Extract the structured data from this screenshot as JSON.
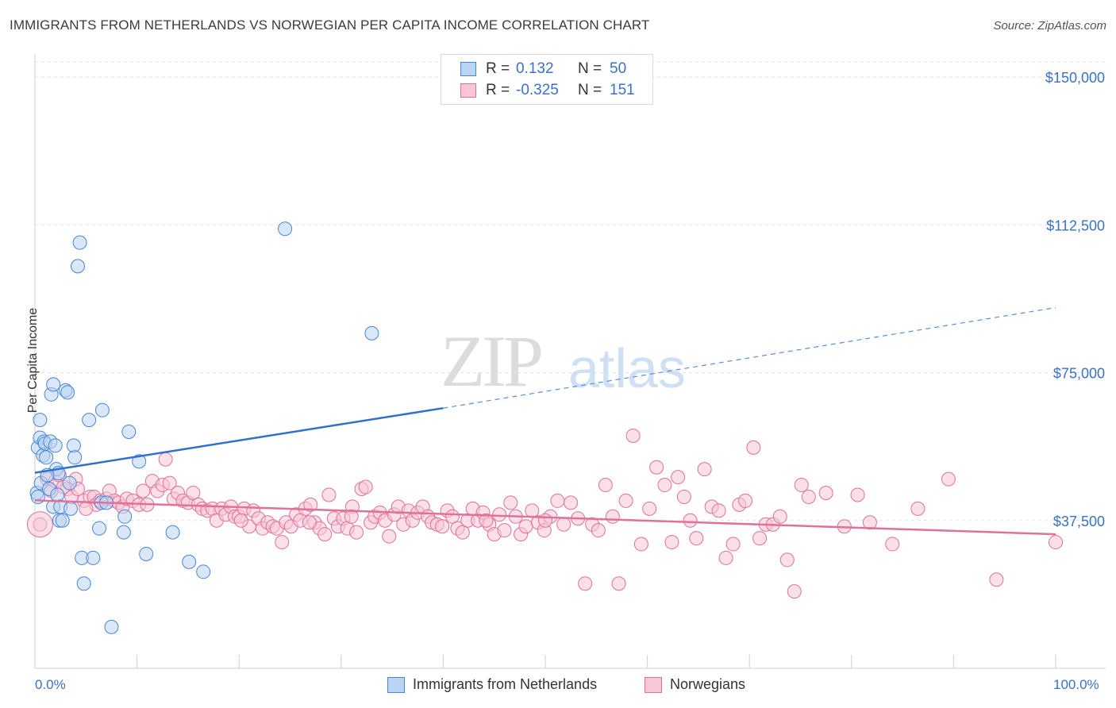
{
  "title": "IMMIGRANTS FROM NETHERLANDS VS NORWEGIAN PER CAPITA INCOME CORRELATION CHART",
  "source": "Source: ZipAtlas.com",
  "watermark": {
    "zip": "ZIP",
    "atlas": "atlas"
  },
  "legend": {
    "r_label": "R =",
    "n_label": "N =",
    "rows": [
      {
        "r": "0.132",
        "n": "50",
        "color": "#4a86d4",
        "fill": "#b9d3f3"
      },
      {
        "r": "-0.325",
        "n": "151",
        "color": "#e0719a",
        "fill": "#f8c6d6"
      }
    ]
  },
  "bottom_legend": [
    {
      "label": "Immigrants from Netherlands"
    },
    {
      "label": "Norwegians"
    }
  ],
  "x_ticks": {
    "left": "0.0%",
    "right": "100.0%"
  },
  "chart_data": {
    "type": "scatter",
    "title": "IMMIGRANTS FROM NETHERLANDS VS NORWEGIAN PER CAPITA INCOME CORRELATION CHART",
    "xlabel": "",
    "ylabel": "Per Capita Income",
    "xlim": [
      0,
      100
    ],
    "ylim": [
      0,
      157000
    ],
    "y_ticks": [
      {
        "value": 37500,
        "label": "$37,500"
      },
      {
        "value": 75000,
        "label": "$75,000"
      },
      {
        "value": 112500,
        "label": "$112,500"
      },
      {
        "value": 150000,
        "label": "$150,000"
      }
    ],
    "grid": true,
    "series": [
      {
        "name": "Immigrants from Netherlands",
        "color": "#4a86d4",
        "fill": "#b9d3f3",
        "trend": {
          "x": [
            0,
            40
          ],
          "y": [
            49600,
            66000
          ],
          "dashed_to": [
            100,
            91500
          ]
        },
        "points": [
          [
            0.2,
            44500
          ],
          [
            0.3,
            56000
          ],
          [
            0.5,
            58500
          ],
          [
            0.5,
            63000
          ],
          [
            0.6,
            47000
          ],
          [
            0.8,
            54000
          ],
          [
            0.9,
            57500
          ],
          [
            1.0,
            57000
          ],
          [
            1.1,
            53500
          ],
          [
            1.4,
            45500
          ],
          [
            1.5,
            57500
          ],
          [
            1.6,
            69500
          ],
          [
            1.8,
            72000
          ],
          [
            1.8,
            41000
          ],
          [
            2.0,
            56500
          ],
          [
            2.1,
            50500
          ],
          [
            2.2,
            44000
          ],
          [
            2.3,
            49500
          ],
          [
            2.4,
            37500
          ],
          [
            2.5,
            41000
          ],
          [
            2.7,
            37500
          ],
          [
            3.0,
            70500
          ],
          [
            3.2,
            70000
          ],
          [
            3.4,
            47000
          ],
          [
            3.5,
            40500
          ],
          [
            3.8,
            56500
          ],
          [
            3.9,
            53500
          ],
          [
            4.2,
            102000
          ],
          [
            4.4,
            108000
          ],
          [
            4.6,
            28000
          ],
          [
            4.8,
            21500
          ],
          [
            5.3,
            63000
          ],
          [
            5.7,
            28000
          ],
          [
            6.3,
            35500
          ],
          [
            6.5,
            42000
          ],
          [
            6.6,
            65500
          ],
          [
            7.0,
            42000
          ],
          [
            7.5,
            10500
          ],
          [
            8.7,
            34500
          ],
          [
            8.8,
            38500
          ],
          [
            9.2,
            60000
          ],
          [
            10.2,
            52500
          ],
          [
            10.9,
            29000
          ],
          [
            13.5,
            34500
          ],
          [
            15.1,
            27000
          ],
          [
            16.5,
            24500
          ],
          [
            24.5,
            111500
          ],
          [
            33.0,
            85000
          ],
          [
            0.3,
            43500
          ],
          [
            1.2,
            49000
          ]
        ]
      },
      {
        "name": "Norwegians",
        "color": "#e0719a",
        "fill": "#f8c6d6",
        "trend": {
          "x": [
            0,
            100
          ],
          "y": [
            42600,
            34000
          ]
        },
        "points": [
          [
            0.5,
            36500
          ],
          [
            1.2,
            48000
          ],
          [
            1.6,
            45000
          ],
          [
            2.0,
            47500
          ],
          [
            2.4,
            49000
          ],
          [
            3.2,
            45500
          ],
          [
            3.6,
            43500
          ],
          [
            4.0,
            48000
          ],
          [
            4.2,
            45500
          ],
          [
            4.8,
            42500
          ],
          [
            5.4,
            43500
          ],
          [
            5.8,
            43500
          ],
          [
            6.0,
            41500
          ],
          [
            6.4,
            42500
          ],
          [
            7.0,
            43000
          ],
          [
            7.3,
            45000
          ],
          [
            7.8,
            42500
          ],
          [
            8.2,
            42000
          ],
          [
            8.6,
            41000
          ],
          [
            9.0,
            43000
          ],
          [
            9.6,
            42500
          ],
          [
            10.2,
            41500
          ],
          [
            10.6,
            45000
          ],
          [
            11.0,
            41500
          ],
          [
            11.5,
            47500
          ],
          [
            12.0,
            45000
          ],
          [
            12.5,
            46500
          ],
          [
            12.8,
            53000
          ],
          [
            13.2,
            47000
          ],
          [
            13.6,
            43000
          ],
          [
            14.0,
            44500
          ],
          [
            14.5,
            42500
          ],
          [
            15.0,
            42000
          ],
          [
            15.5,
            44500
          ],
          [
            16.0,
            41500
          ],
          [
            16.4,
            40500
          ],
          [
            16.9,
            40000
          ],
          [
            17.4,
            40500
          ],
          [
            17.8,
            37500
          ],
          [
            18.3,
            40500
          ],
          [
            18.7,
            39000
          ],
          [
            19.2,
            41000
          ],
          [
            19.6,
            38500
          ],
          [
            20.0,
            38500
          ],
          [
            20.5,
            40500
          ],
          [
            21.0,
            36000
          ],
          [
            21.4,
            40000
          ],
          [
            21.9,
            38000
          ],
          [
            22.3,
            35500
          ],
          [
            22.8,
            37000
          ],
          [
            23.3,
            36000
          ],
          [
            23.7,
            35500
          ],
          [
            24.2,
            32000
          ],
          [
            24.6,
            37000
          ],
          [
            25.1,
            36000
          ],
          [
            25.6,
            39000
          ],
          [
            26.0,
            37500
          ],
          [
            26.5,
            40500
          ],
          [
            27.0,
            41500
          ],
          [
            27.4,
            37000
          ],
          [
            27.9,
            35500
          ],
          [
            28.4,
            34000
          ],
          [
            28.8,
            44000
          ],
          [
            29.3,
            38000
          ],
          [
            29.7,
            36000
          ],
          [
            30.2,
            38000
          ],
          [
            30.6,
            35500
          ],
          [
            31.1,
            41000
          ],
          [
            31.5,
            34500
          ],
          [
            32.0,
            45500
          ],
          [
            32.4,
            46000
          ],
          [
            32.9,
            37000
          ],
          [
            33.3,
            38500
          ],
          [
            33.8,
            39500
          ],
          [
            34.3,
            37500
          ],
          [
            34.7,
            33500
          ],
          [
            35.2,
            39000
          ],
          [
            35.6,
            41000
          ],
          [
            36.1,
            36500
          ],
          [
            36.6,
            40000
          ],
          [
            37.0,
            37500
          ],
          [
            37.5,
            39500
          ],
          [
            38.0,
            41000
          ],
          [
            38.5,
            38500
          ],
          [
            38.9,
            37000
          ],
          [
            39.4,
            36500
          ],
          [
            39.9,
            36000
          ],
          [
            40.4,
            40000
          ],
          [
            40.9,
            38500
          ],
          [
            41.4,
            35500
          ],
          [
            41.9,
            34500
          ],
          [
            42.4,
            37500
          ],
          [
            42.9,
            40500
          ],
          [
            43.4,
            37500
          ],
          [
            43.9,
            39500
          ],
          [
            44.5,
            36500
          ],
          [
            45.0,
            34000
          ],
          [
            45.5,
            39000
          ],
          [
            46.0,
            35000
          ],
          [
            46.6,
            42000
          ],
          [
            47.1,
            38500
          ],
          [
            47.6,
            34000
          ],
          [
            48.1,
            36000
          ],
          [
            48.7,
            40000
          ],
          [
            49.3,
            37000
          ],
          [
            49.9,
            35000
          ],
          [
            50.5,
            38500
          ],
          [
            51.2,
            42500
          ],
          [
            51.8,
            36500
          ],
          [
            52.5,
            42000
          ],
          [
            53.2,
            38000
          ],
          [
            53.9,
            21500
          ],
          [
            54.6,
            36500
          ],
          [
            55.2,
            35000
          ],
          [
            55.9,
            46500
          ],
          [
            56.6,
            38500
          ],
          [
            57.2,
            21500
          ],
          [
            57.9,
            42500
          ],
          [
            58.6,
            59000
          ],
          [
            59.4,
            31500
          ],
          [
            60.2,
            40500
          ],
          [
            60.9,
            51000
          ],
          [
            61.7,
            46500
          ],
          [
            62.4,
            32000
          ],
          [
            63.0,
            48500
          ],
          [
            63.6,
            43500
          ],
          [
            64.2,
            37500
          ],
          [
            64.8,
            33000
          ],
          [
            65.6,
            50500
          ],
          [
            66.3,
            41000
          ],
          [
            67.0,
            40000
          ],
          [
            67.7,
            28000
          ],
          [
            68.4,
            31500
          ],
          [
            69.0,
            41500
          ],
          [
            69.6,
            42500
          ],
          [
            70.4,
            56000
          ],
          [
            71.0,
            33000
          ],
          [
            71.6,
            36500
          ],
          [
            72.3,
            36500
          ],
          [
            73.0,
            38500
          ],
          [
            73.7,
            27500
          ],
          [
            74.4,
            19500
          ],
          [
            75.1,
            46500
          ],
          [
            75.8,
            43500
          ],
          [
            77.5,
            44500
          ],
          [
            79.3,
            36000
          ],
          [
            80.6,
            44000
          ],
          [
            81.8,
            37000
          ],
          [
            84.0,
            31500
          ],
          [
            86.5,
            40500
          ],
          [
            89.5,
            48000
          ],
          [
            94.2,
            22500
          ],
          [
            100.0,
            32000
          ],
          [
            2.8,
            46000
          ],
          [
            5.0,
            40500
          ],
          [
            20.2,
            37500
          ],
          [
            26.9,
            37000
          ],
          [
            31.0,
            38500
          ],
          [
            44.2,
            37500
          ],
          [
            50.0,
            37500
          ],
          [
            0.5,
            36500
          ]
        ]
      }
    ]
  }
}
